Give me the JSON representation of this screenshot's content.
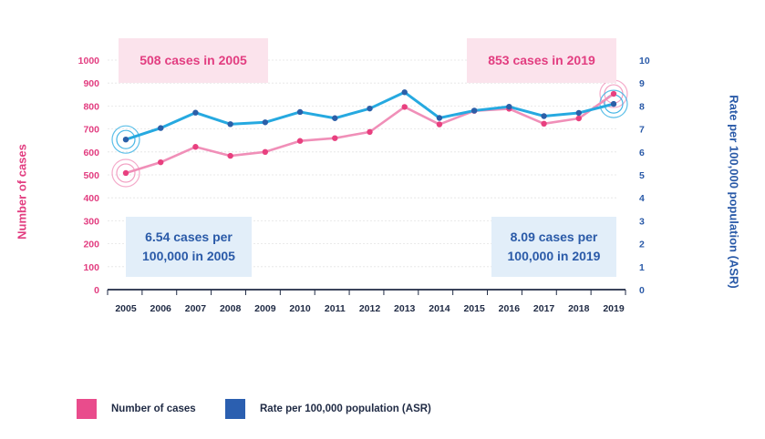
{
  "chart_data": {
    "type": "line",
    "title": "",
    "x": [
      "2005",
      "2006",
      "2007",
      "2008",
      "2009",
      "2010",
      "2011",
      "2012",
      "2013",
      "2014",
      "2015",
      "2016",
      "2017",
      "2018",
      "2019"
    ],
    "series": [
      {
        "name": "Number of cases",
        "axis": "left",
        "color": "#f08fb8",
        "marker_color": "#e8407f",
        "values": [
          508,
          555,
          622,
          583,
          600,
          648,
          660,
          687,
          796,
          720,
          779,
          788,
          723,
          746,
          853
        ]
      },
      {
        "name": "Rate per 100,000 population (ASR)",
        "axis": "right",
        "color": "#26a9e0",
        "marker_color": "#2b5fa8",
        "values": [
          6.54,
          7.04,
          7.71,
          7.21,
          7.29,
          7.74,
          7.47,
          7.89,
          8.6,
          7.48,
          7.8,
          7.97,
          7.56,
          7.7,
          8.09
        ]
      }
    ],
    "ylabel_left": "Number of cases",
    "ylabel_right": "Rate per 100,000 population (ASR)",
    "ylim_left": [
      0,
      1000
    ],
    "ylim_right": [
      0,
      10
    ],
    "yticks_left": [
      "0",
      "100",
      "200",
      "300",
      "400",
      "500",
      "600",
      "700",
      "800",
      "900",
      "1000"
    ],
    "yticks_right": [
      "0",
      "1",
      "2",
      "3",
      "4",
      "5",
      "6",
      "7",
      "8",
      "9",
      "10"
    ],
    "grid": true,
    "highlighted_points": [
      {
        "series": 0,
        "index": 0
      },
      {
        "series": 1,
        "index": 0
      },
      {
        "series": 0,
        "index": 14
      },
      {
        "series": 1,
        "index": 14
      }
    ]
  },
  "callouts": {
    "cases_2005": "508 cases in 2005",
    "cases_2019": "853 cases in 2019",
    "rate_2005": "6.54 cases per 100,000 in 2005",
    "rate_2019": "8.09 cases per 100,000 in 2019"
  },
  "legend": {
    "cases_label": "Number of cases",
    "rate_label": "Rate per 100,000 population (ASR)"
  },
  "colors": {
    "pink_text": "#e23d80",
    "blue_text": "#2a5aa8",
    "pink_swatch": "#e94c8c",
    "blue_swatch": "#2b5fb0"
  }
}
